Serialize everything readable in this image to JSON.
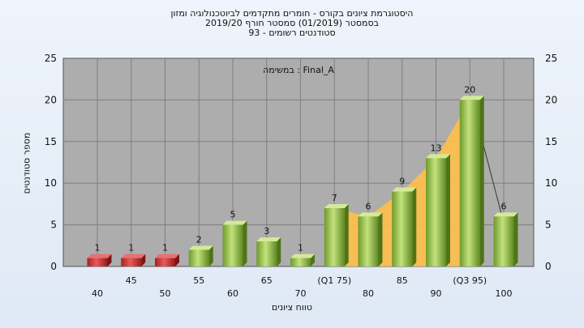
{
  "title_lines": [
    "היסטוגרמת ציונים בקורס - חומרים מתקדמים לביוטכנולוגיה ומזון",
    "בסמסטר  (01/2019)  סמסטר חורף 2019/20",
    "סטודנטים רשומים - 93"
  ],
  "chart_data": {
    "type": "bar",
    "annotation": "במשימה : Final_A",
    "xlabel": "טווח ציונים",
    "ylabel": "מספר סטודנטים",
    "ylim": [
      0,
      25
    ],
    "yticks": [
      0,
      5,
      10,
      15,
      20,
      25
    ],
    "right_axis": true,
    "grid": true,
    "categories": [
      "40",
      "45",
      "50",
      "55",
      "60",
      "65",
      "70",
      "(Q1 75)",
      "80",
      "85",
      "90",
      "(Q3 95)",
      "100"
    ],
    "values": [
      1,
      1,
      1,
      2,
      5,
      3,
      1,
      7,
      6,
      9,
      13,
      20,
      6
    ],
    "bar_colors": [
      "#cc2f2f",
      "#cc2f2f",
      "#cc2f2f",
      "#8fbf3a",
      "#8fbf3a",
      "#8fbf3a",
      "#8fbf3a",
      "#8fbf3a",
      "#8fbf3a",
      "#8fbf3a",
      "#8fbf3a",
      "#8fbf3a",
      "#8fbf3a"
    ],
    "quartile_band": {
      "from_category": "(Q1 75)",
      "to_category": "(Q3 95)",
      "color": "#ffc04a"
    },
    "colors": {
      "plot_bg": "#adadad",
      "grid": "#7e7e7e",
      "red_bar": "#cc2f2f",
      "green_bar": "#8fbf3a"
    }
  }
}
